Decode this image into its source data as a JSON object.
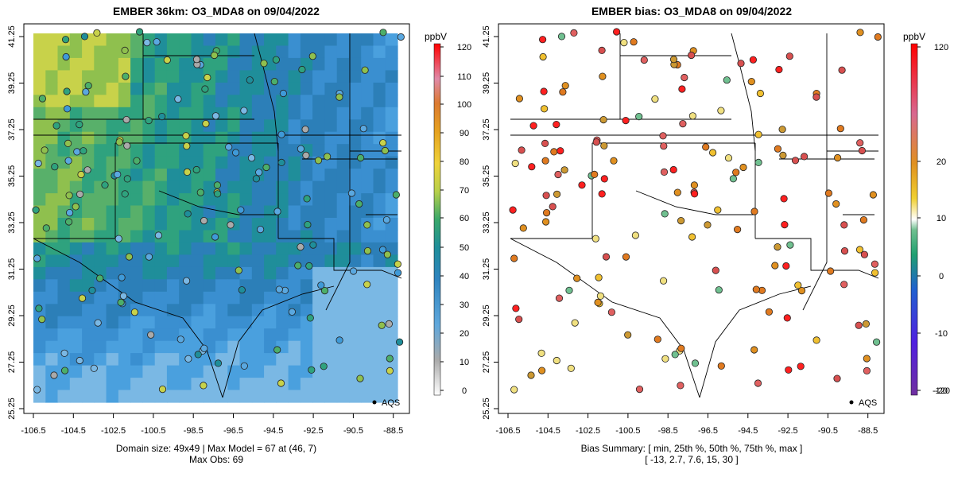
{
  "left_panel": {
    "title": "EMBER 36km: O3_MDA8 on 09/04/2022",
    "caption_line1": "Domain size: 49x49 | Max Model = 67 at (46, 7)",
    "caption_line2": "Max Obs: 69",
    "legend_label": "AQS",
    "colorbar": {
      "unit": "ppbV",
      "ticks": [
        "120",
        "110",
        "100",
        "90",
        "80",
        "70",
        "60",
        "50",
        "40",
        "30",
        "20",
        "10",
        "0"
      ],
      "colors": [
        "#ff0000",
        "#f24b52",
        "#e07090",
        "#d39090",
        "#e0801a",
        "#e69c1a",
        "#f0d028",
        "#a8cc40",
        "#40b050",
        "#20a080",
        "#2090b8",
        "#40a0e0",
        "#80b8e8",
        "#aaaaaa",
        "#ffffff"
      ]
    }
  },
  "right_panel": {
    "title": "EMBER bias: O3_MDA8 on 09/04/2022",
    "caption_line1": "Bias Summary: [ min, 25th %, 50th %, 75th %, max ]",
    "caption_line2": "[ -13,   2.7,   7.6,   15,   30 ]",
    "legend_label": "AQS",
    "colorbar": {
      "unit": "ppbV",
      "ticks": [
        "120",
        "20",
        "10",
        "0",
        "-10",
        "-20",
        "-120"
      ],
      "colors": [
        "#ff0000",
        "#e04040",
        "#d87090",
        "#e08020",
        "#f0c030",
        "#ffffff",
        "#60c080",
        "#20a070",
        "#2060d0",
        "#3030ff",
        "#8040d0",
        "#7030a0"
      ]
    }
  },
  "x_ticks": [
    "-106.5",
    "-104.5",
    "-102.5",
    "-100.5",
    "-98.5",
    "-96.5",
    "-94.5",
    "-92.5",
    "-90.5",
    "-88.5"
  ],
  "y_ticks": [
    "41.25",
    "39.25",
    "37.25",
    "35.25",
    "33.25",
    "31.25",
    "29.25",
    "27.25",
    "25.25"
  ]
}
